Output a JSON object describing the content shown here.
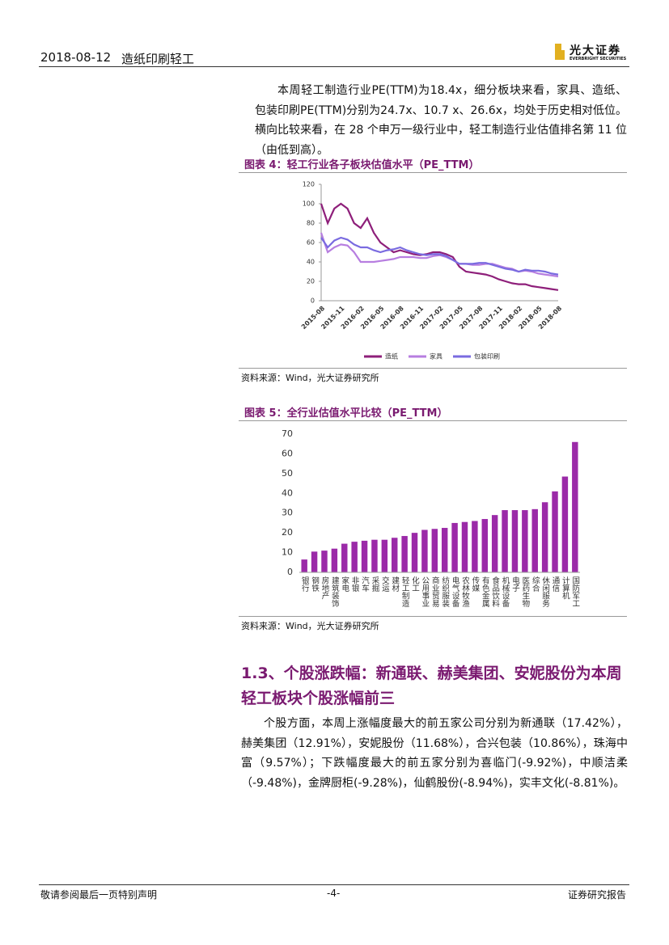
{
  "header": {
    "date": "2018-08-12",
    "section": "造纸印刷轻工",
    "logo_cn": "光大证券",
    "logo_en": "EVERBRIGHT SECURITIES"
  },
  "paragraphs": [
    "本周轻工制造行业PE(TTM)为18.4x，细分板块来看，家具、造纸、包装印刷PE(TTM)分别为24.7x、10.7 x、26.6x，均处于历史相对低位。横向比较来看，在 28 个申万一级行业中，轻工制造行业估值排名第 11 位（由低到高）。",
    "个股方面，本周上涨幅度最大的前五家公司分别为新通联（17.42%），赫美集团（12.91%），安妮股份（11.68%），合兴包装（10.86%），珠海中富（9.57%）；下跌幅度最大的前五家分别为喜临门(-9.92%)，中顺洁柔（-9.48%)，金牌厨柜(-9.28%)，仙鹤股份(-8.94%)，实丰文化(-8.81%)。"
  ],
  "figures": [
    {
      "caption": "图表 4：轻工行业各子板块估值水平（PE_TTM）",
      "source": "资料来源：Wind，光大证券研究所"
    },
    {
      "caption": "图表 5：全行业估值水平比较（PE_TTM）",
      "source": "资料来源：Wind，光大证券研究所"
    }
  ],
  "heading": "1.3、个股涨跌幅：新通联、赫美集团、安妮股份为本周轻工板块个股涨幅前三",
  "footer": {
    "left": "敬请参阅最后一页特别声明",
    "page": "-4-",
    "right": "证券研究报告"
  },
  "chart_data": [
    {
      "type": "line",
      "categories": [
        "2015-08",
        null,
        null,
        "2015-11",
        null,
        null,
        "2016-02",
        null,
        null,
        "2016-05",
        null,
        null,
        "2016-08",
        null,
        null,
        "2016-11",
        null,
        null,
        "2017-02",
        null,
        null,
        "2017-05",
        null,
        null,
        "2017-08",
        null,
        null,
        "2017-11",
        null,
        null,
        "2018-02",
        null,
        null,
        "2018-05",
        null,
        null,
        "2018-08"
      ],
      "series": [
        {
          "name": "造纸",
          "color": "#8e1f7a",
          "values": [
            100,
            80,
            95,
            100,
            95,
            80,
            75,
            85,
            70,
            60,
            55,
            50,
            52,
            50,
            48,
            47,
            48,
            50,
            50,
            48,
            45,
            35,
            30,
            29,
            28,
            27,
            25,
            22,
            20,
            18,
            17,
            17,
            15,
            14,
            13,
            12,
            11
          ]
        },
        {
          "name": "家具",
          "color": "#b77ee0",
          "values": [
            70,
            50,
            55,
            58,
            57,
            50,
            40,
            40,
            40,
            41,
            42,
            43,
            45,
            45,
            45,
            44,
            44,
            46,
            47,
            45,
            42,
            38,
            38,
            37,
            37,
            38,
            38,
            36,
            34,
            33,
            30,
            31,
            30,
            28,
            27,
            26,
            25
          ]
        },
        {
          "name": "包装印刷",
          "color": "#7a6be0",
          "values": [
            65,
            55,
            62,
            65,
            63,
            58,
            55,
            55,
            52,
            50,
            52,
            53,
            55,
            52,
            50,
            48,
            47,
            48,
            48,
            46,
            42,
            38,
            38,
            38,
            39,
            39,
            37,
            35,
            33,
            32,
            30,
            32,
            31,
            31,
            30,
            28,
            27
          ]
        }
      ],
      "ylim": [
        0,
        120
      ],
      "yticks": [
        0,
        20,
        40,
        60,
        80,
        100,
        120
      ],
      "grid": false,
      "legend": "bottom"
    },
    {
      "type": "bar",
      "categories": [
        "银行",
        "钢铁",
        "房地产",
        "建筑装饰",
        "家电",
        "非银",
        "汽车",
        "采掘",
        "交运",
        "建材",
        "轻工制造",
        "化工",
        "公用事业",
        "商业贸易",
        "纺织服装",
        "电气设备",
        "农林牧渔",
        "传媒",
        "有色金属",
        "食品饮料",
        "机械设备",
        "电子",
        "医药生物",
        "综合",
        "休闲服务",
        "通信",
        "计算机",
        "国防军工"
      ],
      "values": [
        6.5,
        10.5,
        11,
        12,
        14.5,
        15.5,
        16,
        16.5,
        16.5,
        17.5,
        18.4,
        20,
        21.5,
        22,
        22.5,
        25,
        25.5,
        26,
        27,
        29,
        31.5,
        31.5,
        31.5,
        32,
        35.5,
        41,
        48.5,
        66
      ],
      "color": "#9b2aa8",
      "ylim": [
        0,
        70
      ],
      "yticks": [
        0,
        10,
        20,
        30,
        40,
        50,
        60,
        70
      ],
      "grid": false
    }
  ]
}
